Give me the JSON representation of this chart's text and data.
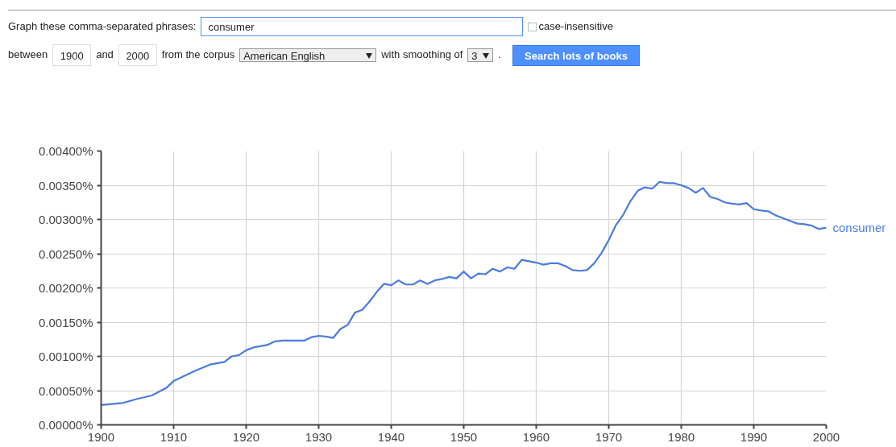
{
  "chart_data": {
    "type": "line",
    "annotations": [
      "Graph these comma-separated phrases:",
      "consumer",
      "case-insensitive",
      "between",
      "1900",
      "and",
      "2000",
      "from the corpus",
      "American English",
      "with smoothing of",
      "3",
      ".",
      "Search lots of books"
    ],
    "x": [
      1900,
      1903,
      1905,
      1907,
      1909,
      1910,
      1912,
      1913,
      1915,
      1917,
      1918,
      1919,
      1920,
      1921,
      1923,
      1924,
      1925,
      1928,
      1929,
      1930,
      1931,
      1932,
      1933,
      1934,
      1935,
      1936,
      1937,
      1938,
      1939,
      1940,
      1941,
      1942,
      1943,
      1944,
      1945,
      1946,
      1947,
      1948,
      1949,
      1950,
      1951,
      1952,
      1953,
      1954,
      1955,
      1956,
      1957,
      1958,
      1959,
      1960,
      1961,
      1962,
      1963,
      1964,
      1965,
      1966,
      1967,
      1968,
      1969,
      1970,
      1971,
      1972,
      1973,
      1974,
      1975,
      1976,
      1977,
      1978,
      1979,
      1980,
      1981,
      1982,
      1983,
      1984,
      1985,
      1986,
      1987,
      1988,
      1989,
      1990,
      1991,
      1992,
      1993,
      1994,
      1995,
      1996,
      1997,
      1998,
      1999,
      2000
    ],
    "series": [
      {
        "name": "consumer",
        "color": "#4a7be0",
        "values": [
          0.00029,
          0.00032,
          0.00038,
          0.00043,
          0.00054,
          0.00064,
          0.00074,
          0.00079,
          0.00088,
          0.00092,
          0.001,
          0.00102,
          0.00109,
          0.00113,
          0.00117,
          0.00122,
          0.00123,
          0.00123,
          0.00128,
          0.0013,
          0.00129,
          0.00127,
          0.0014,
          0.00146,
          0.00164,
          0.00168,
          0.0018,
          0.00194,
          0.00206,
          0.00204,
          0.00211,
          0.00205,
          0.00205,
          0.00211,
          0.00206,
          0.00211,
          0.00213,
          0.00216,
          0.00214,
          0.00224,
          0.00214,
          0.00221,
          0.0022,
          0.00228,
          0.00224,
          0.0023,
          0.00228,
          0.00241,
          0.00239,
          0.00237,
          0.00234,
          0.00236,
          0.00236,
          0.00232,
          0.00226,
          0.00225,
          0.00226,
          0.00236,
          0.00251,
          0.0027,
          0.00292,
          0.00307,
          0.00327,
          0.00342,
          0.00347,
          0.00345,
          0.00355,
          0.00353,
          0.00353,
          0.0035,
          0.00346,
          0.00339,
          0.00346,
          0.00333,
          0.0033,
          0.00325,
          0.00323,
          0.00322,
          0.00324,
          0.00315,
          0.00313,
          0.00312,
          0.00306,
          0.00302,
          0.00298,
          0.00294,
          0.00293,
          0.00291,
          0.00286,
          0.00288
        ]
      }
    ],
    "xlim": [
      1900,
      2000
    ],
    "ylim": [
      0,
      0.004
    ],
    "xticks": [
      1900,
      1910,
      1920,
      1930,
      1940,
      1950,
      1960,
      1970,
      1980,
      1990,
      2000
    ],
    "yticks": [
      {
        "value": 0,
        "label": "0.00000%"
      },
      {
        "value": 0.0005,
        "label": "0.00050%"
      },
      {
        "value": 0.001,
        "label": "0.00100%"
      },
      {
        "value": 0.0015,
        "label": "0.00150%"
      },
      {
        "value": 0.002,
        "label": "0.00200%"
      },
      {
        "value": 0.0025,
        "label": "0.00250%"
      },
      {
        "value": 0.003,
        "label": "0.00300%"
      },
      {
        "value": 0.0035,
        "label": "0.00350%"
      },
      {
        "value": 0.004,
        "label": "0.00400%"
      }
    ],
    "grid": true,
    "legend": false
  }
}
